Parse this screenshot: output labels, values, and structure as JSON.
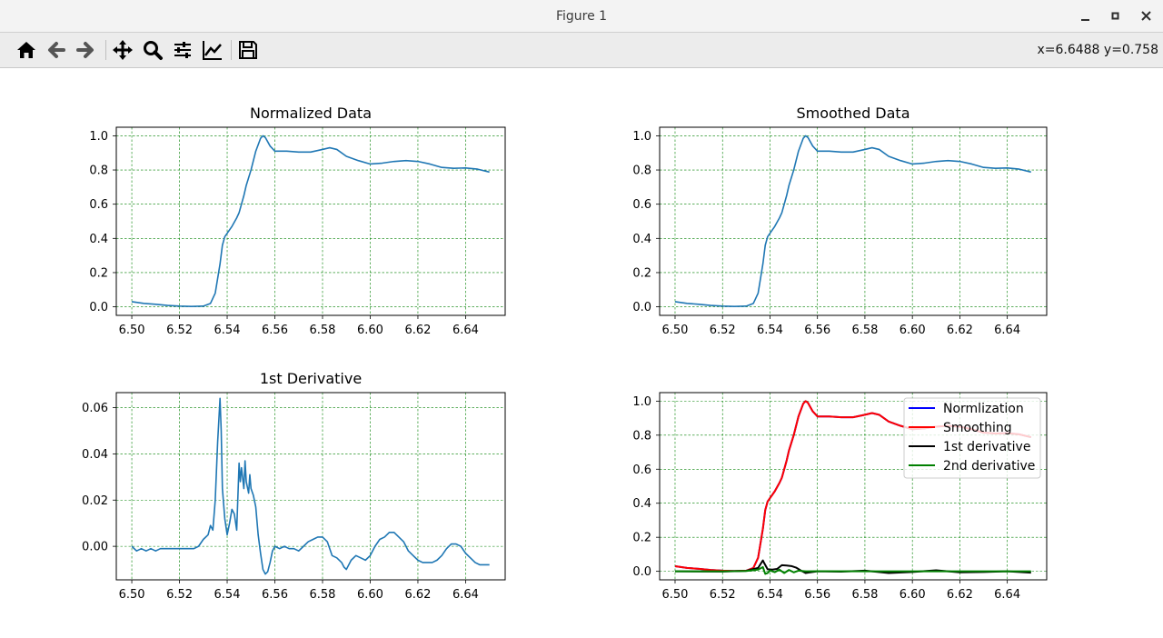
{
  "window": {
    "title": "Figure 1"
  },
  "toolbar": {
    "items": [
      {
        "name": "home-icon"
      },
      {
        "name": "back-icon"
      },
      {
        "name": "forward-icon"
      },
      {
        "name": "pan-icon"
      },
      {
        "name": "zoom-icon"
      },
      {
        "name": "configure-subplots-icon"
      },
      {
        "name": "edit-axis-icon"
      },
      {
        "name": "save-icon"
      }
    ],
    "coords": "x=6.6488 y=0.758"
  },
  "colors": {
    "series_main": "#1f77b4",
    "grid": "#008000",
    "normalization": "#0000ff",
    "smoothing": "#ff0000",
    "first_derivative": "#000000",
    "second_derivative": "#008000"
  },
  "chart_data": [
    {
      "type": "line",
      "title": "Normalized Data",
      "xlabel": "",
      "ylabel": "",
      "xlim": [
        6.4935,
        6.6566
      ],
      "ylim": [
        -0.05,
        1.05
      ],
      "xticks": [
        "6.50",
        "6.52",
        "6.54",
        "6.56",
        "6.58",
        "6.60",
        "6.62",
        "6.64"
      ],
      "yticks": [
        "0.0",
        "0.2",
        "0.4",
        "0.6",
        "0.8",
        "1.0"
      ],
      "grid": true,
      "series": [
        {
          "color": "#1f77b4",
          "x": [
            6.5,
            6.505,
            6.51,
            6.515,
            6.52,
            6.525,
            6.53,
            6.533,
            6.535,
            6.537,
            6.538,
            6.539,
            6.54,
            6.542,
            6.544,
            6.545,
            6.547,
            6.548,
            6.55,
            6.552,
            6.554,
            6.555,
            6.556,
            6.558,
            6.56,
            6.565,
            6.57,
            6.575,
            6.58,
            6.583,
            6.586,
            6.59,
            6.595,
            6.6,
            6.605,
            6.61,
            6.615,
            6.62,
            6.625,
            6.63,
            6.635,
            6.64,
            6.645,
            6.65
          ],
          "y": [
            0.03,
            0.02,
            0.015,
            0.008,
            0.004,
            0.002,
            0.004,
            0.02,
            0.08,
            0.25,
            0.36,
            0.41,
            0.43,
            0.47,
            0.52,
            0.55,
            0.65,
            0.71,
            0.8,
            0.91,
            0.985,
            1.0,
            0.99,
            0.94,
            0.91,
            0.91,
            0.905,
            0.905,
            0.92,
            0.93,
            0.92,
            0.88,
            0.855,
            0.835,
            0.84,
            0.85,
            0.855,
            0.85,
            0.835,
            0.815,
            0.81,
            0.812,
            0.805,
            0.788
          ]
        }
      ]
    },
    {
      "type": "line",
      "title": "Smoothed Data",
      "xlabel": "",
      "ylabel": "",
      "xlim": [
        6.4935,
        6.6566
      ],
      "ylim": [
        -0.05,
        1.05
      ],
      "xticks": [
        "6.50",
        "6.52",
        "6.54",
        "6.56",
        "6.58",
        "6.60",
        "6.62",
        "6.64"
      ],
      "yticks": [
        "0.0",
        "0.2",
        "0.4",
        "0.6",
        "0.8",
        "1.0"
      ],
      "grid": true,
      "series": [
        {
          "color": "#1f77b4",
          "x": [
            6.5,
            6.505,
            6.51,
            6.515,
            6.52,
            6.525,
            6.53,
            6.533,
            6.535,
            6.537,
            6.538,
            6.539,
            6.54,
            6.542,
            6.544,
            6.545,
            6.547,
            6.548,
            6.55,
            6.552,
            6.554,
            6.555,
            6.556,
            6.558,
            6.56,
            6.565,
            6.57,
            6.575,
            6.58,
            6.583,
            6.586,
            6.59,
            6.595,
            6.6,
            6.605,
            6.61,
            6.615,
            6.62,
            6.625,
            6.63,
            6.635,
            6.64,
            6.645,
            6.65
          ],
          "y": [
            0.03,
            0.02,
            0.015,
            0.008,
            0.004,
            0.002,
            0.004,
            0.02,
            0.08,
            0.25,
            0.36,
            0.41,
            0.43,
            0.47,
            0.52,
            0.55,
            0.65,
            0.71,
            0.8,
            0.91,
            0.985,
            1.0,
            0.99,
            0.94,
            0.91,
            0.91,
            0.905,
            0.905,
            0.92,
            0.93,
            0.92,
            0.88,
            0.855,
            0.835,
            0.84,
            0.85,
            0.855,
            0.85,
            0.835,
            0.815,
            0.81,
            0.812,
            0.805,
            0.788
          ]
        }
      ]
    },
    {
      "type": "line",
      "title": "1st Derivative",
      "xlabel": "",
      "ylabel": "",
      "xlim": [
        6.4935,
        6.6566
      ],
      "ylim": [
        -0.0145,
        0.0665
      ],
      "xticks": [
        "6.50",
        "6.52",
        "6.54",
        "6.56",
        "6.58",
        "6.60",
        "6.62",
        "6.64"
      ],
      "yticks": [
        "0.00",
        "0.02",
        "0.04",
        "0.06"
      ],
      "grid": true,
      "series": [
        {
          "color": "#1f77b4",
          "x": [
            6.5,
            6.502,
            6.504,
            6.506,
            6.508,
            6.51,
            6.512,
            6.514,
            6.516,
            6.518,
            6.52,
            6.522,
            6.524,
            6.526,
            6.528,
            6.53,
            6.532,
            6.533,
            6.534,
            6.535,
            6.536,
            6.537,
            6.5375,
            6.538,
            6.539,
            6.54,
            6.541,
            6.542,
            6.543,
            6.544,
            6.545,
            6.5455,
            6.546,
            6.547,
            6.5475,
            6.548,
            6.549,
            6.5495,
            6.55,
            6.551,
            6.552,
            6.553,
            6.554,
            6.555,
            6.556,
            6.557,
            6.558,
            6.559,
            6.56,
            6.562,
            6.564,
            6.566,
            6.568,
            6.57,
            6.572,
            6.574,
            6.576,
            6.578,
            6.58,
            6.582,
            6.584,
            6.586,
            6.588,
            6.589,
            6.59,
            6.592,
            6.594,
            6.596,
            6.598,
            6.6,
            6.602,
            6.604,
            6.606,
            6.608,
            6.61,
            6.612,
            6.614,
            6.616,
            6.618,
            6.62,
            6.622,
            6.624,
            6.626,
            6.628,
            6.63,
            6.632,
            6.634,
            6.636,
            6.638,
            6.64,
            6.642,
            6.644,
            6.646,
            6.648,
            6.65
          ],
          "y": [
            0.0,
            -0.002,
            -0.001,
            -0.002,
            -0.001,
            -0.002,
            -0.001,
            -0.001,
            -0.001,
            -0.001,
            -0.001,
            -0.001,
            -0.001,
            -0.001,
            0.0,
            0.003,
            0.005,
            0.009,
            0.007,
            0.02,
            0.045,
            0.064,
            0.05,
            0.025,
            0.012,
            0.005,
            0.01,
            0.016,
            0.014,
            0.007,
            0.036,
            0.028,
            0.034,
            0.025,
            0.037,
            0.028,
            0.023,
            0.031,
            0.025,
            0.022,
            0.017,
            0.005,
            -0.003,
            -0.01,
            -0.012,
            -0.011,
            -0.007,
            -0.002,
            0.0,
            -0.001,
            0.0,
            -0.001,
            -0.001,
            -0.002,
            0.0,
            0.002,
            0.003,
            0.004,
            0.004,
            0.002,
            -0.004,
            -0.005,
            -0.007,
            -0.009,
            -0.01,
            -0.006,
            -0.004,
            -0.005,
            -0.006,
            -0.004,
            0.0,
            0.003,
            0.004,
            0.006,
            0.006,
            0.004,
            0.002,
            -0.002,
            -0.004,
            -0.006,
            -0.007,
            -0.007,
            -0.007,
            -0.006,
            -0.004,
            -0.001,
            0.001,
            0.001,
            0.0,
            -0.003,
            -0.005,
            -0.007,
            -0.008,
            -0.008,
            -0.008
          ]
        }
      ]
    },
    {
      "type": "line",
      "title": "",
      "xlabel": "",
      "ylabel": "",
      "xlim": [
        6.4935,
        6.6566
      ],
      "ylim": [
        -0.05,
        1.05
      ],
      "xticks": [
        "6.50",
        "6.52",
        "6.54",
        "6.56",
        "6.58",
        "6.60",
        "6.62",
        "6.64"
      ],
      "yticks": [
        "0.0",
        "0.2",
        "0.4",
        "0.6",
        "0.8",
        "1.0"
      ],
      "grid": true,
      "legend": "top-right",
      "series": [
        {
          "name": "Normlization",
          "color": "#0000ff",
          "x": [
            6.5,
            6.505,
            6.51,
            6.515,
            6.52,
            6.525,
            6.53,
            6.533,
            6.535,
            6.537,
            6.538,
            6.539,
            6.54,
            6.542,
            6.544,
            6.545,
            6.547,
            6.548,
            6.55,
            6.552,
            6.554,
            6.555,
            6.556,
            6.558,
            6.56,
            6.565,
            6.57,
            6.575,
            6.58,
            6.583,
            6.586,
            6.59,
            6.595,
            6.6,
            6.605,
            6.61,
            6.615,
            6.62,
            6.625,
            6.63,
            6.635,
            6.64,
            6.645,
            6.65
          ],
          "y": [
            0.03,
            0.02,
            0.015,
            0.008,
            0.004,
            0.002,
            0.004,
            0.02,
            0.08,
            0.25,
            0.36,
            0.41,
            0.43,
            0.47,
            0.52,
            0.55,
            0.65,
            0.71,
            0.8,
            0.91,
            0.985,
            1.0,
            0.99,
            0.94,
            0.91,
            0.91,
            0.905,
            0.905,
            0.92,
            0.93,
            0.92,
            0.88,
            0.855,
            0.835,
            0.84,
            0.85,
            0.855,
            0.85,
            0.835,
            0.815,
            0.81,
            0.812,
            0.805,
            0.788
          ]
        },
        {
          "name": "Smoothing",
          "color": "#ff0000",
          "x": [
            6.5,
            6.505,
            6.51,
            6.515,
            6.52,
            6.525,
            6.53,
            6.533,
            6.535,
            6.537,
            6.538,
            6.539,
            6.54,
            6.542,
            6.544,
            6.545,
            6.547,
            6.548,
            6.55,
            6.552,
            6.554,
            6.555,
            6.556,
            6.558,
            6.56,
            6.565,
            6.57,
            6.575,
            6.58,
            6.583,
            6.586,
            6.59,
            6.595,
            6.6,
            6.605,
            6.61,
            6.615,
            6.62,
            6.625,
            6.63,
            6.635,
            6.64,
            6.645,
            6.65
          ],
          "y": [
            0.03,
            0.02,
            0.015,
            0.008,
            0.004,
            0.002,
            0.004,
            0.02,
            0.08,
            0.25,
            0.36,
            0.41,
            0.43,
            0.47,
            0.52,
            0.55,
            0.65,
            0.71,
            0.8,
            0.91,
            0.985,
            1.0,
            0.99,
            0.94,
            0.91,
            0.91,
            0.905,
            0.905,
            0.92,
            0.93,
            0.92,
            0.88,
            0.855,
            0.835,
            0.84,
            0.85,
            0.855,
            0.85,
            0.835,
            0.815,
            0.81,
            0.812,
            0.805,
            0.788
          ]
        },
        {
          "name": "1st derivative",
          "color": "#000000",
          "x": [
            6.5,
            6.52,
            6.53,
            6.535,
            6.537,
            6.5375,
            6.539,
            6.541,
            6.543,
            6.545,
            6.547,
            6.549,
            6.551,
            6.553,
            6.555,
            6.56,
            6.57,
            6.58,
            6.59,
            6.6,
            6.61,
            6.62,
            6.63,
            6.64,
            6.65
          ],
          "y": [
            0.0,
            -0.001,
            0.003,
            0.02,
            0.064,
            0.05,
            0.012,
            0.01,
            0.014,
            0.036,
            0.034,
            0.031,
            0.022,
            0.005,
            -0.01,
            0.0,
            -0.002,
            0.004,
            -0.01,
            -0.004,
            0.006,
            -0.006,
            -0.004,
            0.0,
            -0.008
          ]
        },
        {
          "name": "2nd derivative",
          "color": "#008000",
          "x": [
            6.5,
            6.51,
            6.52,
            6.53,
            6.535,
            6.537,
            6.538,
            6.539,
            6.54,
            6.542,
            6.544,
            6.546,
            6.548,
            6.55,
            6.552,
            6.555,
            6.56,
            6.58,
            6.6,
            6.62,
            6.64,
            6.65
          ],
          "y": [
            0.0,
            0.0,
            0.0,
            0.002,
            0.01,
            0.025,
            -0.015,
            -0.01,
            0.005,
            -0.005,
            0.01,
            -0.01,
            0.008,
            -0.006,
            0.004,
            0.0,
            0.001,
            0.0,
            0.0,
            0.0,
            0.0,
            0.0
          ]
        }
      ]
    }
  ]
}
